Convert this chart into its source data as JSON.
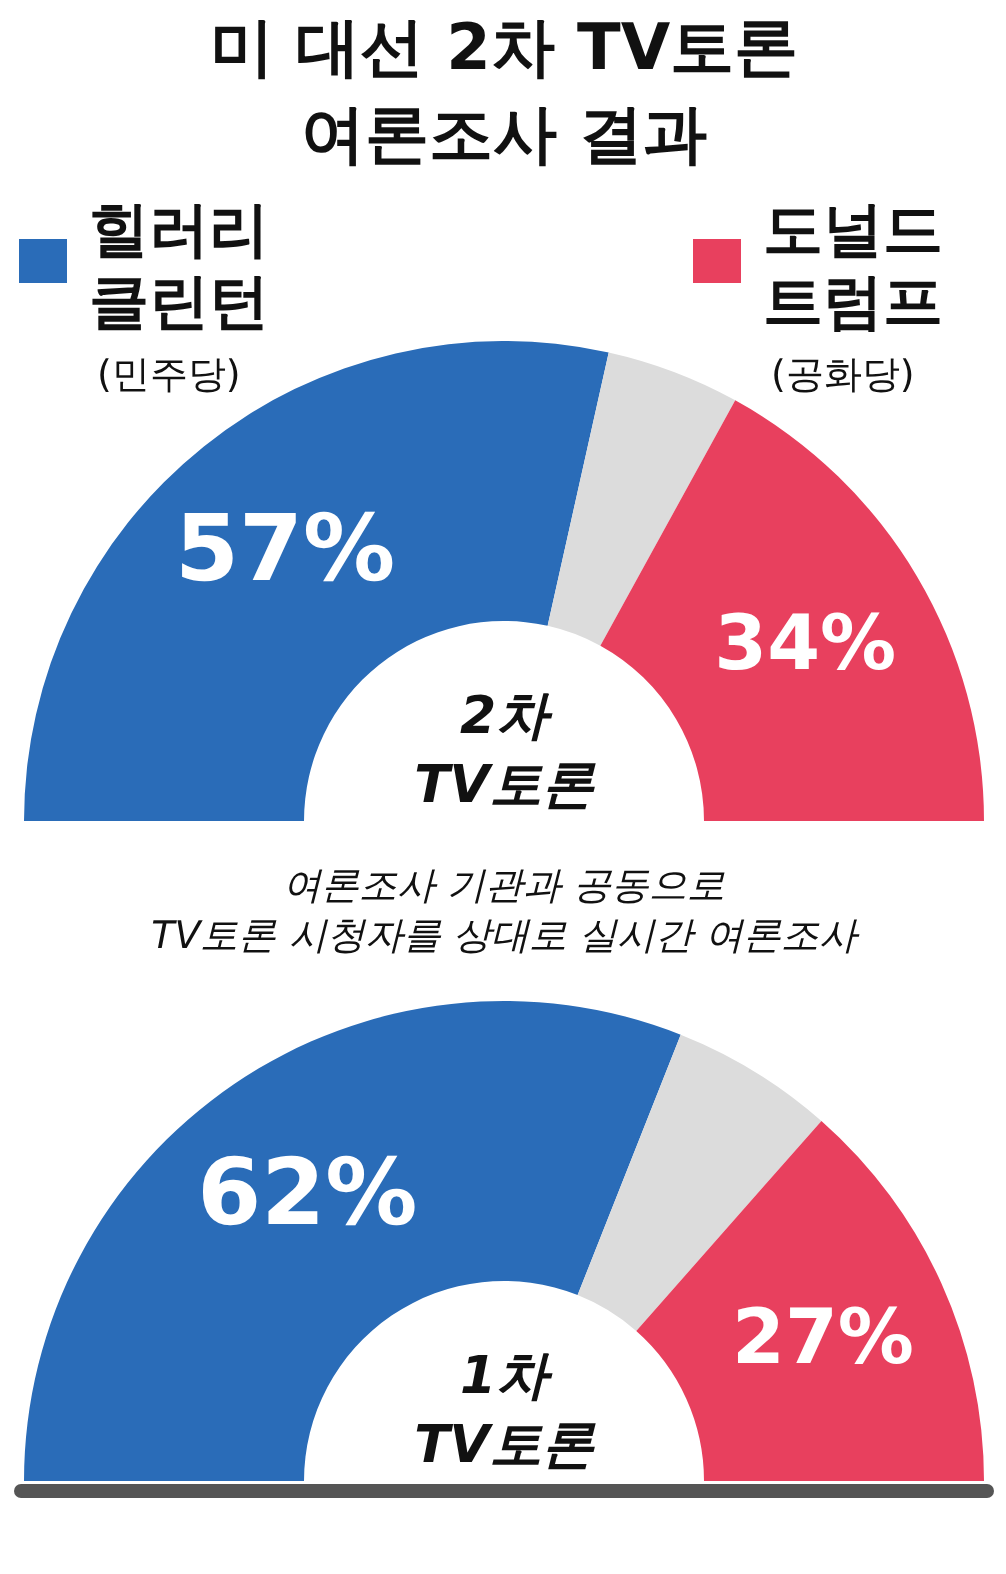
{
  "chart_data": [
    {
      "type": "donut",
      "title": "미 대선 2차 TV토론\n여론조사 결과",
      "categories": [
        "힐러리 클린턴 (민주당)",
        null,
        "도널드 트럼프 (공화당)"
      ],
      "values": [
        57,
        9,
        34
      ],
      "colors": [
        "#2a6cb8",
        "#dcdcdc",
        "#e8405e"
      ],
      "value_labels": [
        "57%",
        null,
        "34%"
      ],
      "legend": "top",
      "annotations": [
        "2차\nTV토론",
        "여론조사 기관과 공동으로\nTV토론 시청자를 상대로 실시간 여론조사"
      ]
    },
    {
      "type": "donut",
      "categories": [
        null,
        null,
        null
      ],
      "values": [
        62,
        11,
        27
      ],
      "colors": [
        "#2a6cb8",
        "#dcdcdc",
        "#e8405e"
      ],
      "value_labels": [
        "62%",
        null,
        "27%"
      ],
      "annotations": [
        "1차\nTV토론"
      ]
    }
  ]
}
